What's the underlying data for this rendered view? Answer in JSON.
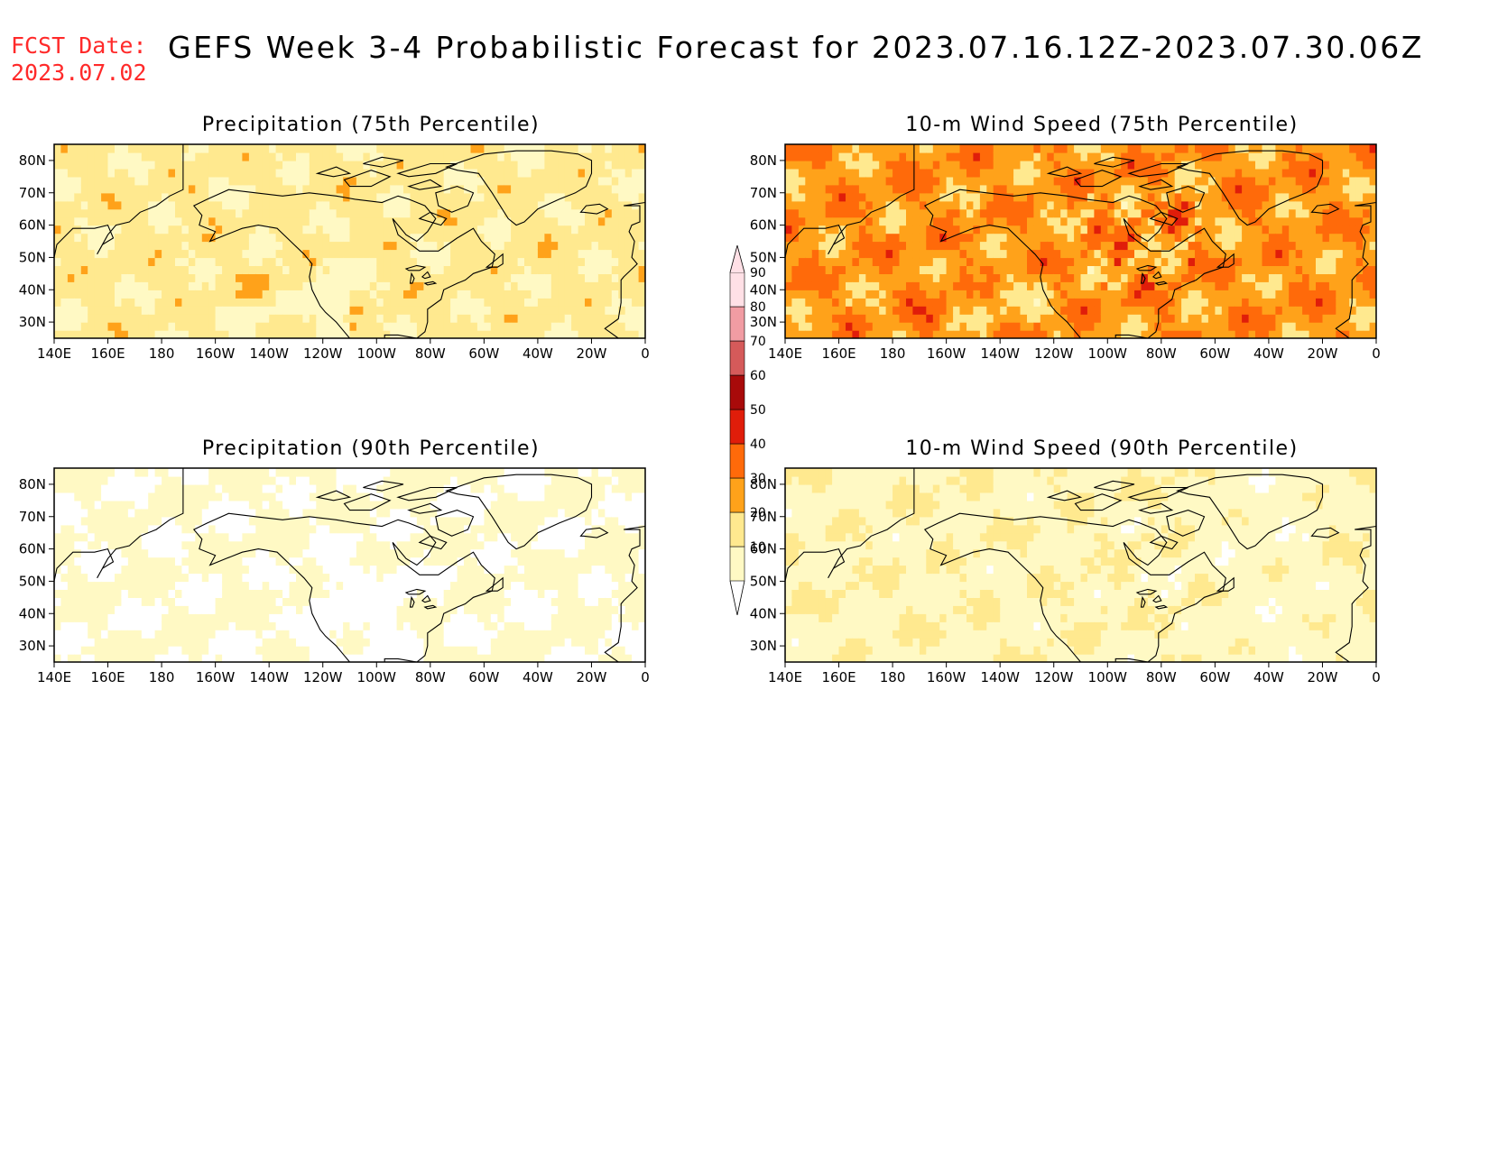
{
  "header": {
    "fcst_label": "FCST Date:",
    "fcst_date": "2023.07.02",
    "title": "GEFS Week 3-4 Probabilistic Forecast for 2023.07.16.12Z-2023.07.30.06Z"
  },
  "map_extent": {
    "lon_min": 140,
    "lon_max": 360,
    "lat_min": 25,
    "lat_max": 85
  },
  "lon_ticks": [
    "140E",
    "160E",
    "180",
    "160W",
    "140W",
    "120W",
    "100W",
    "80W",
    "60W",
    "40W",
    "20W",
    "0"
  ],
  "lat_ticks": [
    "80N",
    "70N",
    "60N",
    "50N",
    "40N",
    "30N"
  ],
  "colorbar": {
    "levels": [
      "10",
      "20",
      "30",
      "40",
      "50",
      "60",
      "70",
      "80",
      "90"
    ],
    "colors": [
      "#fff9c4",
      "#ffe98f",
      "#ffa21a",
      "#ff6a0a",
      "#e01d0a",
      "#a80a0a",
      "#d55a5a",
      "#f19ca3",
      "#ffe0e6"
    ]
  },
  "panels": [
    {
      "title": "Precipitation (75th Percentile)",
      "base_color": "#ffe48e",
      "field": "precip75"
    },
    {
      "title": "10-m Wind Speed (75th Percentile)",
      "base_color": "#ff9a1c",
      "field": "wind75"
    },
    {
      "title": "Precipitation (90th Percentile)",
      "base_color": "#fff4b8",
      "field": "precip90"
    },
    {
      "title": "10-m Wind Speed (90th Percentile)",
      "base_color": "#ffe596",
      "field": "wind90"
    }
  ]
}
